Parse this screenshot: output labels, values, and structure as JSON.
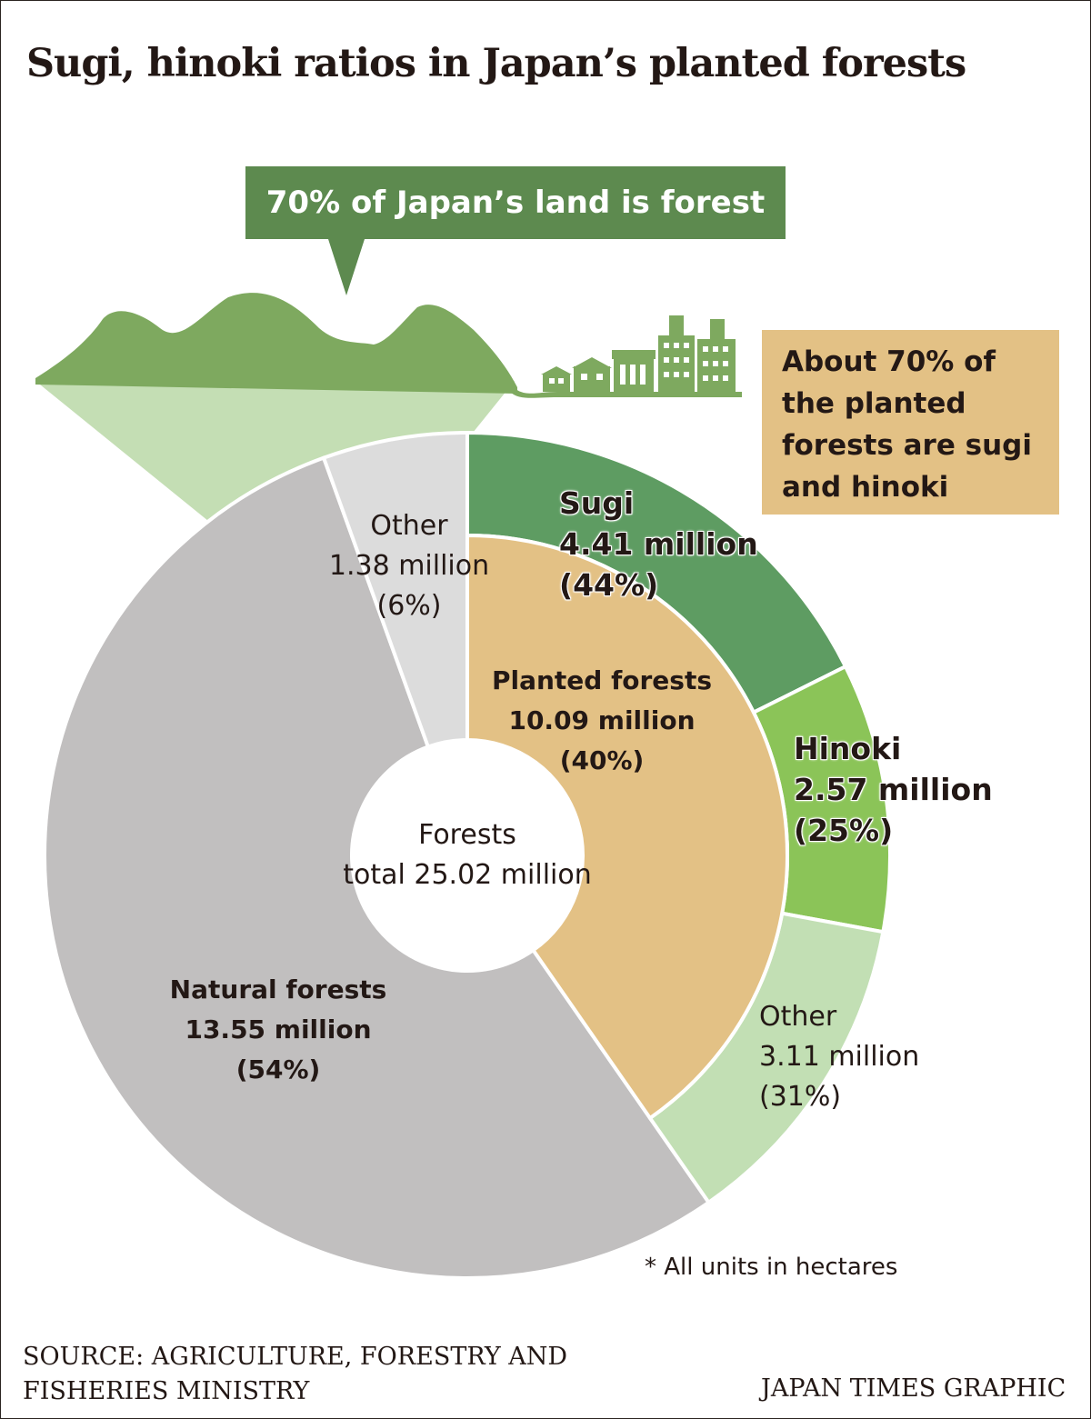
{
  "title": "Sugi, hinoki ratios in Japan’s planted forests",
  "callout": "70% of Japan’s land is forest",
  "note_lines": [
    "About 70% of",
    "the planted",
    "forests are sugi",
    "and hinoki"
  ],
  "colors": {
    "natural": "#c1bfbf",
    "other_top": "#dcdcdc",
    "planted": "#e3c185",
    "sugi": "#5e9c62",
    "hinoki": "#8bc458",
    "planted_other": "#c2dfb4",
    "mountain": "#7ea95f",
    "mountain_light": "#c4deb4",
    "callout": "#5d8a4f",
    "text": "#231815"
  },
  "chart_data": {
    "type": "pie",
    "subtype": "sunburst",
    "units": "hectares",
    "center_label": [
      "Forests",
      "total 25.02 million"
    ],
    "total": 25.02,
    "inner": [
      {
        "name": "Planted forests",
        "value": 10.09,
        "value_label": "10.09 million",
        "pct_label": "(40%)",
        "percent": 40
      },
      {
        "name": "Natural forests",
        "value": 13.55,
        "value_label": "13.55 million",
        "pct_label": "(54%)",
        "percent": 54
      },
      {
        "name": "Other",
        "value": 1.38,
        "value_label": "1.38 million",
        "pct_label": "(6%)",
        "percent": 6
      }
    ],
    "outer": {
      "parent": "Planted forests",
      "segments": [
        {
          "name": "Sugi",
          "value": 4.41,
          "value_label": "4.41 million",
          "pct_label": "(44%)",
          "percent": 44
        },
        {
          "name": "Hinoki",
          "value": 2.57,
          "value_label": "2.57 million",
          "pct_label": "(25%)",
          "percent": 25
        },
        {
          "name": "Other",
          "value": 3.11,
          "value_label": "3.11 million",
          "pct_label": "(31%)",
          "percent": 31
        }
      ]
    }
  },
  "footnote": "* All units in hectares",
  "source_lines": [
    "SOURCE: AGRICULTURE, FORESTRY AND",
    "FISHERIES MINISTRY"
  ],
  "credit": "JAPAN TIMES GRAPHIC"
}
